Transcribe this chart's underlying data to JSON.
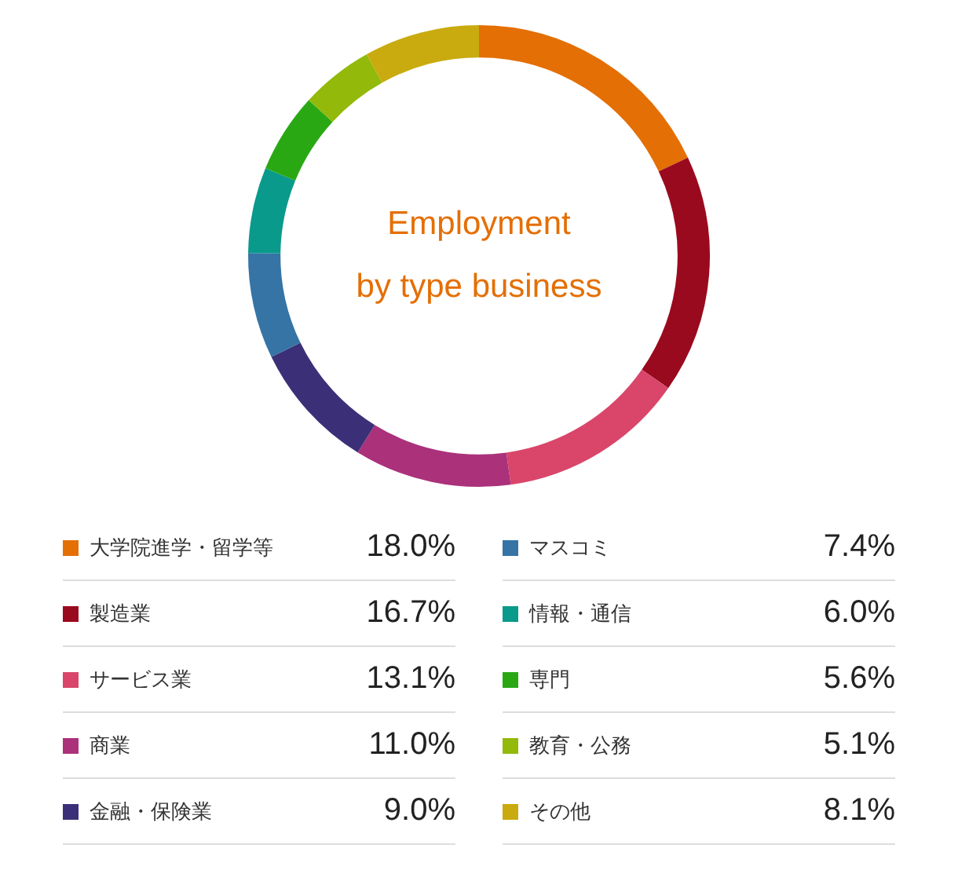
{
  "chart_data": {
    "type": "donut",
    "title": "Employment\nby type business",
    "categories": [
      "大学院進学・留学等",
      "製造業",
      "サービス業",
      "商業",
      "金融・保険業",
      "マスコミ",
      "情報・通信",
      "専門",
      "教育・公務",
      "その他"
    ],
    "values": [
      18.0,
      16.7,
      13.1,
      11.0,
      9.0,
      7.4,
      6.0,
      5.6,
      5.1,
      8.1
    ],
    "colors": [
      "#e46f05",
      "#9a0a1e",
      "#d9466a",
      "#ab317b",
      "#3b3078",
      "#3574a5",
      "#0a9a8c",
      "#2aa814",
      "#93b90a",
      "#c9ab0f"
    ],
    "value_labels": [
      "18.0%",
      "16.7%",
      "13.1%",
      "11.0%",
      "9.0%",
      "7.4%",
      "6.0%",
      "5.6%",
      "5.1%",
      "8.1%"
    ],
    "legend": "bottom"
  }
}
